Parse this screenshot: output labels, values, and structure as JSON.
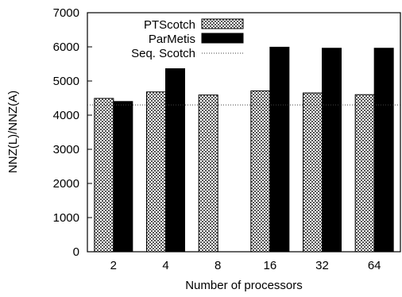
{
  "chart_data": {
    "type": "bar",
    "categories": [
      "2",
      "4",
      "8",
      "16",
      "32",
      "64"
    ],
    "series": [
      {
        "name": "PTScotch",
        "values": [
          4490,
          4680,
          4590,
          4710,
          4650,
          4600
        ],
        "pattern": "checkered",
        "color": "#000000"
      },
      {
        "name": "ParMetis",
        "values": [
          4400,
          5360,
          null,
          5990,
          5960,
          5960
        ],
        "pattern": "solid",
        "color": "#000000"
      }
    ],
    "reference_line": {
      "name": "Seq. Scotch",
      "value": 4300,
      "style": "dotted"
    },
    "title": "",
    "xlabel": "Number of processors",
    "ylabel": "NNZ(L)/NNZ(A)",
    "ylim": [
      0,
      7000
    ],
    "yticks": [
      0,
      1000,
      2000,
      3000,
      4000,
      5000,
      6000,
      7000
    ],
    "grid": false,
    "legend_position": "top-right"
  }
}
